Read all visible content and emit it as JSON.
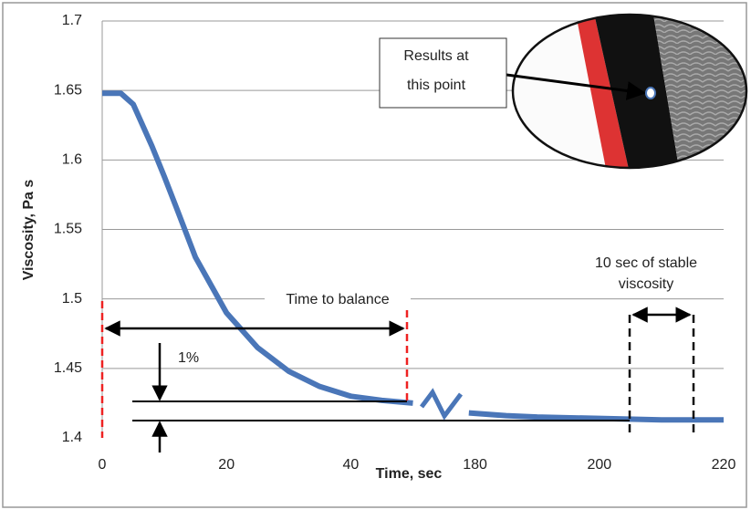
{
  "chart_data": {
    "type": "line",
    "xlabel": "Time, sec",
    "ylabel": "Viscosity, Pa s",
    "xticks": [
      0,
      20,
      40,
      180,
      200,
      220
    ],
    "ylim": [
      1.4,
      1.7
    ],
    "yticks": [
      1.4,
      1.45,
      1.5,
      1.55,
      1.6,
      1.65,
      1.7
    ],
    "grid": true,
    "series": [
      {
        "color": "#4a76b8",
        "x": [
          0,
          3,
          5,
          8,
          10,
          12,
          15,
          20,
          25,
          30,
          35,
          40,
          45,
          50,
          null,
          179,
          185,
          190,
          200,
          210,
          220
        ],
        "values": [
          1.648,
          1.648,
          1.64,
          1.61,
          1.588,
          1.565,
          1.53,
          1.49,
          1.465,
          1.448,
          1.437,
          1.43,
          1.427,
          1.425,
          null,
          1.418,
          1.416,
          1.415,
          1.414,
          1.413,
          1.413
        ]
      }
    ],
    "annotations": {
      "time_to_balance": "Time to balance",
      "one_percent": "1%",
      "stable": [
        "10 sec of stable",
        "viscosity"
      ],
      "results": [
        "Results at",
        "this point"
      ]
    }
  }
}
